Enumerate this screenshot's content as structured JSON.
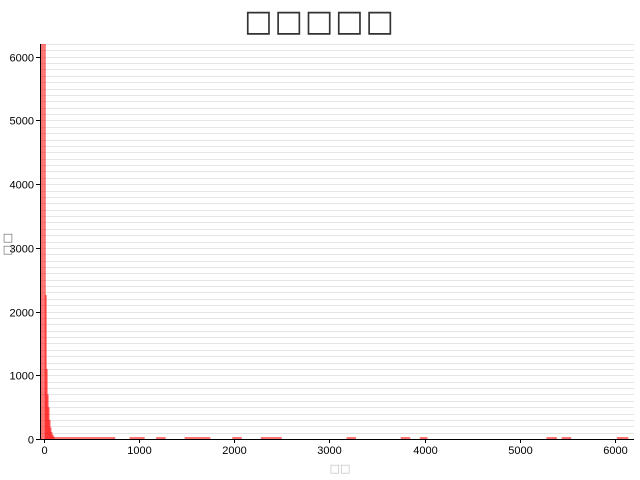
{
  "chart_data": {
    "type": "bar",
    "title": "□□□□□",
    "xlabel": "□□",
    "ylabel": "□□",
    "xlim": [
      -40,
      6200
    ],
    "ylim": [
      0,
      6200
    ],
    "x_ticks": [
      0,
      1000,
      2000,
      3000,
      4000,
      5000,
      6000
    ],
    "y_ticks": [
      0,
      1000,
      2000,
      3000,
      4000,
      5000,
      6000
    ],
    "grid": "horizontal",
    "bar_color": "#ff0000",
    "bars": [
      {
        "x0": -40,
        "x1": 0,
        "y": 6200
      },
      {
        "x0": 0,
        "x1": 10,
        "y": 6200
      },
      {
        "x0": 10,
        "x1": 20,
        "y": 2260
      },
      {
        "x0": 20,
        "x1": 30,
        "y": 1100
      },
      {
        "x0": 30,
        "x1": 40,
        "y": 700
      },
      {
        "x0": 40,
        "x1": 50,
        "y": 500
      },
      {
        "x0": 50,
        "x1": 60,
        "y": 300
      },
      {
        "x0": 60,
        "x1": 70,
        "y": 180
      },
      {
        "x0": 70,
        "x1": 80,
        "y": 110
      },
      {
        "x0": 80,
        "x1": 90,
        "y": 70
      },
      {
        "x0": 90,
        "x1": 100,
        "y": 45
      },
      {
        "x0": 100,
        "x1": 150,
        "y": 30
      },
      {
        "x0": 150,
        "x1": 250,
        "y": 20
      },
      {
        "x0": 250,
        "x1": 400,
        "y": 15
      },
      {
        "x0": 400,
        "x1": 550,
        "y": 12
      },
      {
        "x0": 550,
        "x1": 700,
        "y": 10
      },
      {
        "x0": 700,
        "x1": 750,
        "y": 8
      },
      {
        "x0": 900,
        "x1": 1000,
        "y": 10
      },
      {
        "x0": 1000,
        "x1": 1060,
        "y": 8
      },
      {
        "x0": 1180,
        "x1": 1280,
        "y": 10
      },
      {
        "x0": 1480,
        "x1": 1600,
        "y": 10
      },
      {
        "x0": 1600,
        "x1": 1750,
        "y": 8
      },
      {
        "x0": 1980,
        "x1": 2080,
        "y": 8
      },
      {
        "x0": 2280,
        "x1": 2400,
        "y": 12
      },
      {
        "x0": 2400,
        "x1": 2500,
        "y": 8
      },
      {
        "x0": 3180,
        "x1": 3280,
        "y": 12
      },
      {
        "x0": 3750,
        "x1": 3850,
        "y": 8
      },
      {
        "x0": 3950,
        "x1": 4030,
        "y": 8
      },
      {
        "x0": 5280,
        "x1": 5390,
        "y": 8
      },
      {
        "x0": 5440,
        "x1": 5540,
        "y": 8
      },
      {
        "x0": 6020,
        "x1": 6140,
        "y": 8
      }
    ]
  }
}
